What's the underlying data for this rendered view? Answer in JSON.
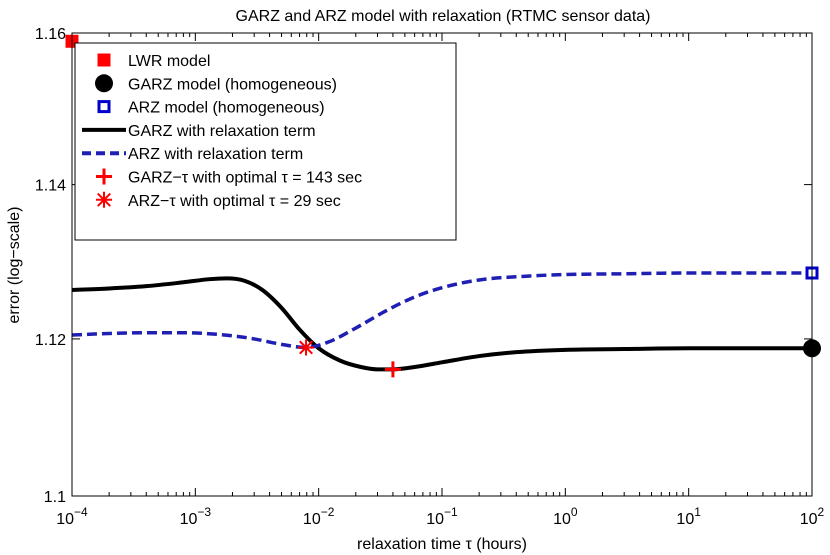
{
  "chart_data": {
    "type": "line",
    "title": "GARZ and ARZ model with relaxation (RTMC sensor data)",
    "xlabel": "relaxation time τ (hours)",
    "ylabel": "error (log−scale)",
    "xscale": "log",
    "xlim": [
      0.0001,
      100
    ],
    "ylim": [
      1.1,
      1.16
    ],
    "x_ticks": [
      {
        "value": 0.0001,
        "base": "10",
        "exp": "−4"
      },
      {
        "value": 0.001,
        "base": "10",
        "exp": "−3"
      },
      {
        "value": 0.01,
        "base": "10",
        "exp": "−2"
      },
      {
        "value": 0.1,
        "base": "10",
        "exp": "−1"
      },
      {
        "value": 1,
        "base": "10",
        "exp": "0"
      },
      {
        "value": 10,
        "base": "10",
        "exp": "1"
      },
      {
        "value": 100,
        "base": "10",
        "exp": "2"
      }
    ],
    "y_ticks": [
      {
        "value": 1.1,
        "label": "1.1"
      },
      {
        "value": 1.12,
        "label": "1.12"
      },
      {
        "value": 1.14,
        "label": "1.14"
      },
      {
        "value": 1.16,
        "label": "1.16"
      }
    ],
    "grid": false,
    "legend_position": "top-left",
    "series": [
      {
        "name": "GARZ with relaxation term",
        "kind": "line",
        "style": "solid",
        "color": "#000000",
        "points": [
          [
            0.0001,
            1.1263
          ],
          [
            0.0002,
            1.1265
          ],
          [
            0.0004,
            1.1268
          ],
          [
            0.0008,
            1.1273
          ],
          [
            0.0013,
            1.1277
          ],
          [
            0.0018,
            1.1278
          ],
          [
            0.0025,
            1.1275
          ],
          [
            0.0035,
            1.1263
          ],
          [
            0.005,
            1.124
          ],
          [
            0.007,
            1.1212
          ],
          [
            0.01,
            1.1188
          ],
          [
            0.015,
            1.1172
          ],
          [
            0.022,
            1.1164
          ],
          [
            0.03,
            1.1161
          ],
          [
            0.04,
            1.1161
          ],
          [
            0.06,
            1.1164
          ],
          [
            0.1,
            1.117
          ],
          [
            0.2,
            1.1178
          ],
          [
            0.4,
            1.1183
          ],
          [
            1,
            1.1186
          ],
          [
            3,
            1.1187
          ],
          [
            10,
            1.1188
          ],
          [
            30,
            1.1188
          ],
          [
            100,
            1.1188
          ]
        ]
      },
      {
        "name": "ARZ with relaxation term",
        "kind": "line",
        "style": "dashed",
        "color": "#1f1fb4",
        "points": [
          [
            0.0001,
            1.1205
          ],
          [
            0.0002,
            1.1207
          ],
          [
            0.0004,
            1.1208
          ],
          [
            0.0008,
            1.1208
          ],
          [
            0.0012,
            1.1207
          ],
          [
            0.002,
            1.1204
          ],
          [
            0.003,
            1.12
          ],
          [
            0.005,
            1.1193
          ],
          [
            0.0079,
            1.1189
          ],
          [
            0.012,
            1.1196
          ],
          [
            0.02,
            1.1214
          ],
          [
            0.035,
            1.1236
          ],
          [
            0.06,
            1.1254
          ],
          [
            0.1,
            1.1266
          ],
          [
            0.2,
            1.1276
          ],
          [
            0.5,
            1.1281
          ],
          [
            1,
            1.1283
          ],
          [
            3,
            1.1284
          ],
          [
            10,
            1.1285
          ],
          [
            30,
            1.1285
          ],
          [
            100,
            1.1285
          ]
        ]
      },
      {
        "name": "LWR model",
        "kind": "marker",
        "marker": "filled-square",
        "color": "#ff0000",
        "points": [
          [
            0.0001,
            1.1589
          ]
        ]
      },
      {
        "name": "GARZ model (homogeneous)",
        "kind": "marker",
        "marker": "filled-circle",
        "color": "#000000",
        "points": [
          [
            100,
            1.1188
          ]
        ]
      },
      {
        "name": "ARZ model (homogeneous)",
        "kind": "marker",
        "marker": "open-square",
        "color": "#0000c8",
        "points": [
          [
            100,
            1.1285
          ]
        ]
      },
      {
        "name": "GARZ−τ  with optimal τ = 143 sec",
        "kind": "marker",
        "marker": "plus",
        "color": "#ff0000",
        "points": [
          [
            0.04,
            1.1161
          ]
        ]
      },
      {
        "name": "ARZ−τ  with optimal τ = 29 sec",
        "kind": "marker",
        "marker": "asterisk",
        "color": "#ff0000",
        "points": [
          [
            0.0079,
            1.1189
          ]
        ]
      }
    ],
    "legend": [
      {
        "label": "LWR model",
        "marker": "filled-square",
        "color": "#ff0000"
      },
      {
        "label": "GARZ model (homogeneous)",
        "marker": "filled-circle",
        "color": "#000000"
      },
      {
        "label": "ARZ model (homogeneous)",
        "marker": "open-square",
        "color": "#0000c8"
      },
      {
        "label": "GARZ with relaxation term",
        "marker": "solid-line",
        "color": "#000000"
      },
      {
        "label": "ARZ with relaxation term",
        "marker": "dashed-line",
        "color": "#1f1fb4"
      },
      {
        "label": "GARZ−τ  with optimal τ = 143 sec",
        "marker": "plus",
        "color": "#ff0000"
      },
      {
        "label": "ARZ−τ  with optimal τ = 29 sec",
        "marker": "asterisk",
        "color": "#ff0000"
      }
    ]
  }
}
